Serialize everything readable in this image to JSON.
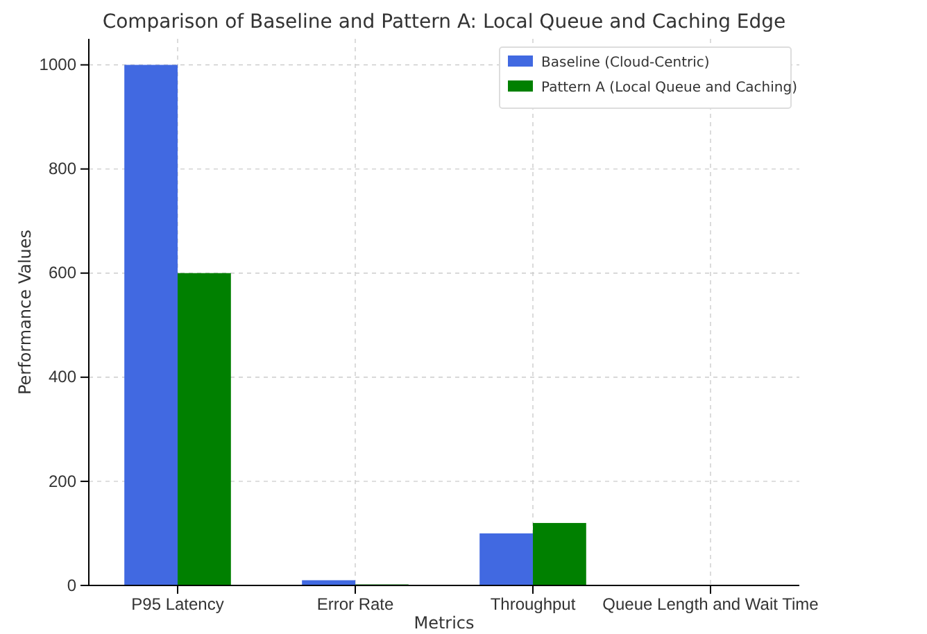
{
  "chart_data": {
    "type": "bar",
    "title": "Comparison of Baseline and Pattern A: Local Queue and Caching Edge",
    "xlabel": "Metrics",
    "ylabel": "Performance Values",
    "categories": [
      "P95 Latency",
      "Error Rate",
      "Throughput",
      "Queue Length and Wait Time"
    ],
    "series": [
      {
        "name": "Baseline (Cloud-Centric)",
        "color": "#4169e1",
        "values": [
          1000,
          10,
          100,
          0
        ]
      },
      {
        "name": "Pattern A (Local Queue and Caching)",
        "color": "#008000",
        "values": [
          600,
          2,
          120,
          0
        ]
      }
    ],
    "ylim": [
      0,
      1050
    ],
    "yticks": [
      0,
      200,
      400,
      600,
      800,
      1000
    ],
    "grid": true,
    "legend": "top right"
  }
}
